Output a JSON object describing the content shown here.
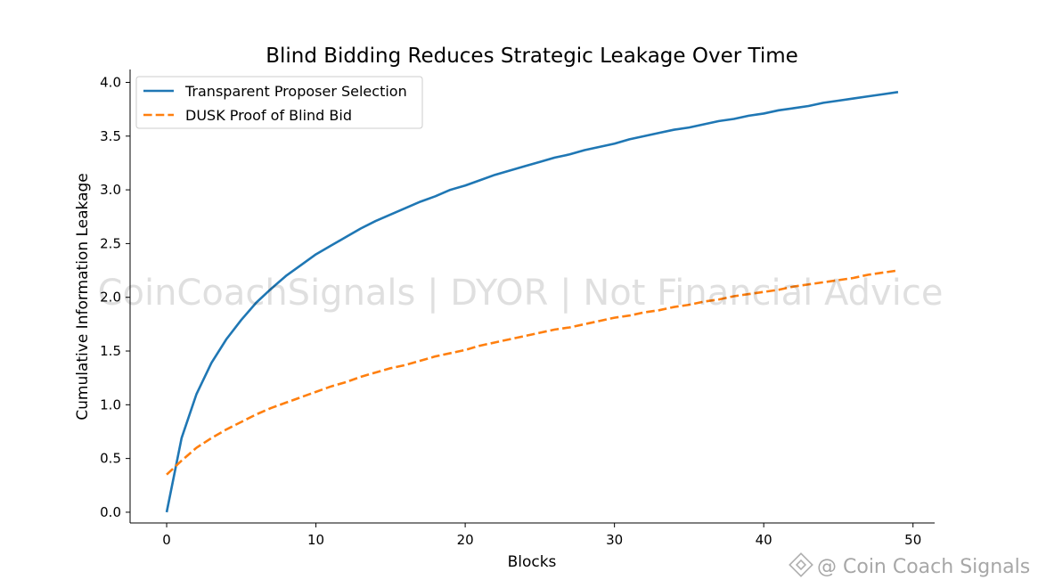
{
  "chart_data": {
    "type": "line",
    "title": "Blind Bidding Reduces Strategic Leakage Over Time",
    "xlabel": "Blocks",
    "ylabel": "Cumulative Information Leakage",
    "xlim": [
      -2.45,
      51.45
    ],
    "ylim": [
      -0.1,
      4.12
    ],
    "xticks": [
      0,
      10,
      20,
      30,
      40,
      50
    ],
    "yticks": [
      0.0,
      0.5,
      1.0,
      1.5,
      2.0,
      2.5,
      3.0,
      3.5,
      4.0
    ],
    "xtick_labels": [
      "0",
      "10",
      "20",
      "30",
      "40",
      "50"
    ],
    "ytick_labels": [
      "0.0",
      "0.5",
      "1.0",
      "1.5",
      "2.0",
      "2.5",
      "3.0",
      "3.5",
      "4.0"
    ],
    "grid": false,
    "legend_position": "top-left",
    "x": [
      0,
      1,
      2,
      3,
      4,
      5,
      6,
      7,
      8,
      9,
      10,
      11,
      12,
      13,
      14,
      15,
      16,
      17,
      18,
      19,
      20,
      21,
      22,
      23,
      24,
      25,
      26,
      27,
      28,
      29,
      30,
      31,
      32,
      33,
      34,
      35,
      36,
      37,
      38,
      39,
      40,
      41,
      42,
      43,
      44,
      45,
      46,
      47,
      48,
      49
    ],
    "series": [
      {
        "name": "Transparent Proposer Selection",
        "color": "#1f77b4",
        "style": "solid",
        "values": [
          0.0,
          0.69,
          1.1,
          1.39,
          1.61,
          1.79,
          1.95,
          2.08,
          2.2,
          2.3,
          2.4,
          2.48,
          2.56,
          2.64,
          2.71,
          2.77,
          2.83,
          2.89,
          2.94,
          3.0,
          3.04,
          3.09,
          3.14,
          3.18,
          3.22,
          3.26,
          3.3,
          3.33,
          3.37,
          3.4,
          3.43,
          3.47,
          3.5,
          3.53,
          3.56,
          3.58,
          3.61,
          3.64,
          3.66,
          3.69,
          3.71,
          3.74,
          3.76,
          3.78,
          3.81,
          3.83,
          3.85,
          3.87,
          3.89,
          3.91
        ]
      },
      {
        "name": "DUSK Proof of Blind Bid",
        "color": "#ff7f0e",
        "style": "dashed",
        "values": [
          0.35,
          0.48,
          0.6,
          0.69,
          0.77,
          0.84,
          0.91,
          0.97,
          1.02,
          1.07,
          1.12,
          1.17,
          1.21,
          1.26,
          1.3,
          1.34,
          1.37,
          1.41,
          1.45,
          1.48,
          1.51,
          1.55,
          1.58,
          1.61,
          1.64,
          1.67,
          1.7,
          1.72,
          1.75,
          1.78,
          1.81,
          1.83,
          1.86,
          1.88,
          1.91,
          1.93,
          1.96,
          1.98,
          2.01,
          2.03,
          2.05,
          2.07,
          2.1,
          2.12,
          2.14,
          2.16,
          2.18,
          2.21,
          2.23,
          2.25
        ]
      }
    ]
  },
  "watermarks": {
    "center": "CoinCoachSignals | DYOR | Not Financial Advice",
    "corner": "@ Coin Coach Signals",
    "corner_icon": "binance-logo-icon"
  }
}
